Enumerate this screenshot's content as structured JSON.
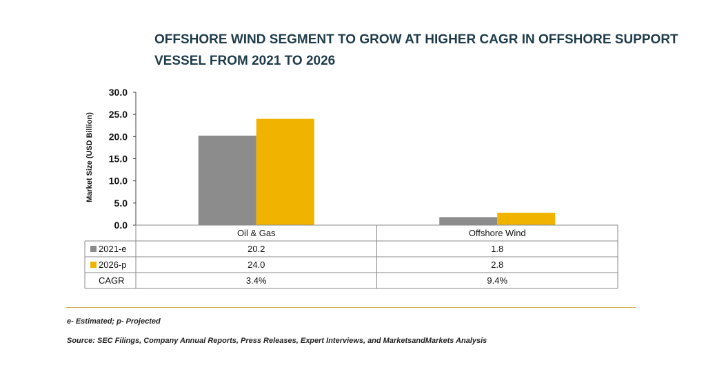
{
  "title_lines": [
    "OFFSHORE WIND SEGMENT TO GROW AT HIGHER CAGR IN OFFSHORE SUPPORT",
    "VESSEL FROM 2021 TO 2026"
  ],
  "footnotes": {
    "legend_note": "e- Estimated; p- Projected",
    "source": "Source: SEC Filings, Company Annual Reports, Press Releases, Expert Interviews, and MarketsandMarkets Analysis"
  },
  "chart_data": {
    "type": "bar",
    "title": "OFFSHORE WIND SEGMENT TO GROW AT HIGHER CAGR IN OFFSHORE SUPPORT VESSEL FROM 2021 TO 2026",
    "xlabel": "",
    "ylabel": "Market Size (USD Billion)",
    "ylim": [
      0,
      30
    ],
    "yticks": [
      "0.0",
      "5.0",
      "10.0",
      "15.0",
      "20.0",
      "25.0",
      "30.0"
    ],
    "categories": [
      "Oil & Gas",
      "Offshore Wind"
    ],
    "series": [
      {
        "name": "2021-e",
        "values": [
          20.2,
          1.8
        ],
        "labels": [
          "20.2",
          "1.8"
        ],
        "color": "#8c8c8c"
      },
      {
        "name": "2026-p",
        "values": [
          24.0,
          2.8
        ],
        "labels": [
          "24.0",
          "2.8"
        ],
        "color": "#f0b400"
      }
    ],
    "table_extra_row": {
      "label": "CAGR",
      "values": [
        "3.4%",
        "9.4%"
      ]
    },
    "grid": false,
    "legend": "data-table"
  }
}
